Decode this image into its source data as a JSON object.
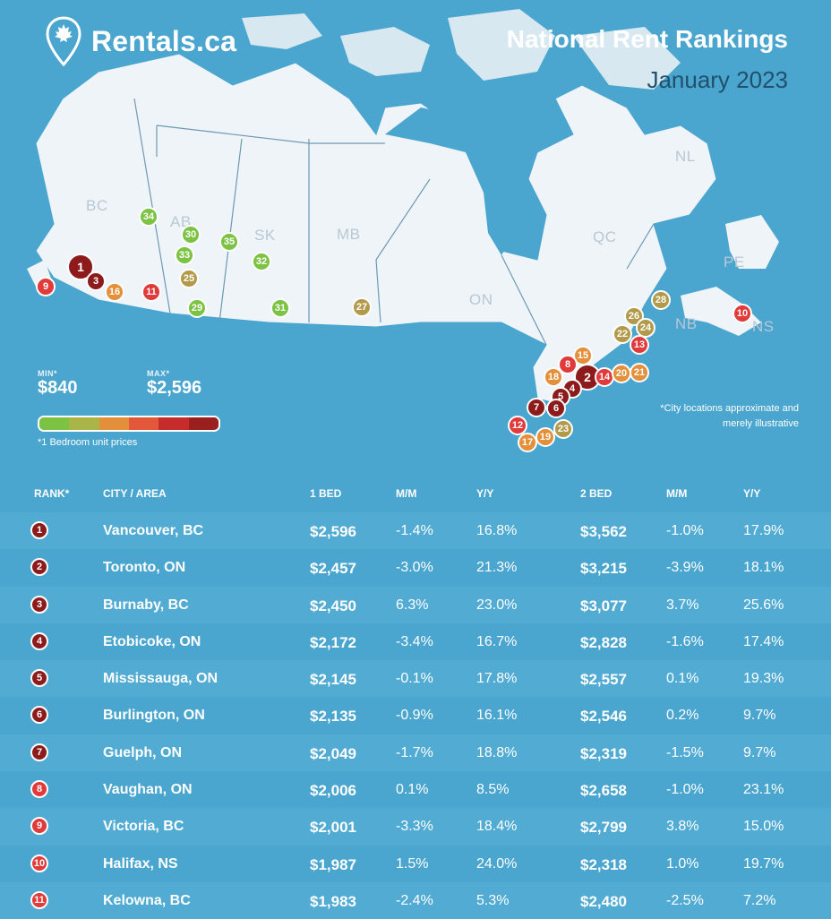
{
  "brand": {
    "name": "Rentals.ca"
  },
  "title": "National Rent Rankings",
  "subtitle": "January 2023",
  "provinces": [
    {
      "code": "BC",
      "label": "BC"
    },
    {
      "code": "AB",
      "label": "AB"
    },
    {
      "code": "SK",
      "label": "SK"
    },
    {
      "code": "MB",
      "label": "MB"
    },
    {
      "code": "ON",
      "label": "ON"
    },
    {
      "code": "QC",
      "label": "QC"
    },
    {
      "code": "NL",
      "label": "NL"
    },
    {
      "code": "NB",
      "label": "NB"
    },
    {
      "code": "PE",
      "label": "PE"
    },
    {
      "code": "NS",
      "label": "NS"
    }
  ],
  "legend": {
    "min_label": "MIN*",
    "min_value": "$840",
    "max_label": "MAX*",
    "max_value": "$2,596",
    "note": "*1 Bedroom unit prices",
    "colors": [
      "#7cc243",
      "#a9b547",
      "#e48f3a",
      "#e3573a",
      "#c62c2c",
      "#9a1f1f"
    ]
  },
  "disclaimer": "*City locations approximate and merely illustrative",
  "markers": [
    {
      "rank": "1",
      "color": "#8e1b1b"
    },
    {
      "rank": "3",
      "color": "#8e1b1b"
    },
    {
      "rank": "9",
      "color": "#e03a3a"
    },
    {
      "rank": "16",
      "color": "#e48f3a"
    },
    {
      "rank": "11",
      "color": "#e03a3a"
    },
    {
      "rank": "34",
      "color": "#7cc243"
    },
    {
      "rank": "30",
      "color": "#7cc243"
    },
    {
      "rank": "33",
      "color": "#7cc243"
    },
    {
      "rank": "25",
      "color": "#b39a4a"
    },
    {
      "rank": "29",
      "color": "#7cc243"
    },
    {
      "rank": "35",
      "color": "#7cc243"
    },
    {
      "rank": "32",
      "color": "#7cc243"
    },
    {
      "rank": "31",
      "color": "#7cc243"
    },
    {
      "rank": "27",
      "color": "#b39a4a"
    },
    {
      "rank": "28",
      "color": "#b39a4a"
    },
    {
      "rank": "26",
      "color": "#b39a4a"
    },
    {
      "rank": "22",
      "color": "#b39a4a"
    },
    {
      "rank": "24",
      "color": "#b39a4a"
    },
    {
      "rank": "13",
      "color": "#e03a3a"
    },
    {
      "rank": "10",
      "color": "#e03a3a"
    },
    {
      "rank": "15",
      "color": "#e48f3a"
    },
    {
      "rank": "8",
      "color": "#e03a3a"
    },
    {
      "rank": "18",
      "color": "#e48f3a"
    },
    {
      "rank": "2",
      "color": "#8e1b1b"
    },
    {
      "rank": "4",
      "color": "#8e1b1b"
    },
    {
      "rank": "14",
      "color": "#e03a3a"
    },
    {
      "rank": "20",
      "color": "#e48f3a"
    },
    {
      "rank": "21",
      "color": "#e48f3a"
    },
    {
      "rank": "5",
      "color": "#8e1b1b"
    },
    {
      "rank": "6",
      "color": "#8e1b1b"
    },
    {
      "rank": "7",
      "color": "#8e1b1b"
    },
    {
      "rank": "12",
      "color": "#e03a3a"
    },
    {
      "rank": "17",
      "color": "#e48f3a"
    },
    {
      "rank": "19",
      "color": "#e48f3a"
    },
    {
      "rank": "23",
      "color": "#b39a4a"
    }
  ],
  "table": {
    "headers": {
      "rank": "RANK*",
      "city": "CITY / AREA",
      "bed1": "1 BED",
      "mm1": "M/M",
      "yy1": "Y/Y",
      "bed2": "2 BED",
      "mm2": "M/M",
      "yy2": "Y/Y"
    },
    "rows": [
      {
        "rank": "1",
        "city": "Vancouver, BC",
        "bed1": "$2,596",
        "mm1": "-1.4%",
        "yy1": "16.8%",
        "bed2": "$3,562",
        "mm2": "-1.0%",
        "yy2": "17.9%",
        "color": "#8e1b1b"
      },
      {
        "rank": "2",
        "city": "Toronto, ON",
        "bed1": "$2,457",
        "mm1": "-3.0%",
        "yy1": "21.3%",
        "bed2": "$3,215",
        "mm2": "-3.9%",
        "yy2": "18.1%",
        "color": "#8e1b1b"
      },
      {
        "rank": "3",
        "city": "Burnaby, BC",
        "bed1": "$2,450",
        "mm1": "6.3%",
        "yy1": "23.0%",
        "bed2": "$3,077",
        "mm2": "3.7%",
        "yy2": "25.6%",
        "color": "#8e1b1b"
      },
      {
        "rank": "4",
        "city": "Etobicoke, ON",
        "bed1": "$2,172",
        "mm1": "-3.4%",
        "yy1": "16.7%",
        "bed2": "$2,828",
        "mm2": "-1.6%",
        "yy2": "17.4%",
        "color": "#8e1b1b"
      },
      {
        "rank": "5",
        "city": "Mississauga, ON",
        "bed1": "$2,145",
        "mm1": "-0.1%",
        "yy1": "17.8%",
        "bed2": "$2,557",
        "mm2": "0.1%",
        "yy2": "19.3%",
        "color": "#8e1b1b"
      },
      {
        "rank": "6",
        "city": "Burlington, ON",
        "bed1": "$2,135",
        "mm1": "-0.9%",
        "yy1": "16.1%",
        "bed2": "$2,546",
        "mm2": "0.2%",
        "yy2": "9.7%",
        "color": "#8e1b1b"
      },
      {
        "rank": "7",
        "city": "Guelph, ON",
        "bed1": "$2,049",
        "mm1": "-1.7%",
        "yy1": "18.8%",
        "bed2": "$2,319",
        "mm2": "-1.5%",
        "yy2": "9.7%",
        "color": "#8e1b1b"
      },
      {
        "rank": "8",
        "city": "Vaughan, ON",
        "bed1": "$2,006",
        "mm1": "0.1%",
        "yy1": "8.5%",
        "bed2": "$2,658",
        "mm2": "-1.0%",
        "yy2": "23.1%",
        "color": "#e03a3a"
      },
      {
        "rank": "9",
        "city": "Victoria, BC",
        "bed1": "$2,001",
        "mm1": "-3.3%",
        "yy1": "18.4%",
        "bed2": "$2,799",
        "mm2": "3.8%",
        "yy2": "15.0%",
        "color": "#e03a3a"
      },
      {
        "rank": "10",
        "city": "Halifax, NS",
        "bed1": "$1,987",
        "mm1": "1.5%",
        "yy1": "24.0%",
        "bed2": "$2,318",
        "mm2": "1.0%",
        "yy2": "19.7%",
        "color": "#e03a3a"
      },
      {
        "rank": "11",
        "city": "Kelowna, BC",
        "bed1": "$1,983",
        "mm1": "-2.4%",
        "yy1": "5.3%",
        "bed2": "$2,480",
        "mm2": "-2.5%",
        "yy2": "7.2%",
        "color": "#e03a3a"
      }
    ]
  }
}
